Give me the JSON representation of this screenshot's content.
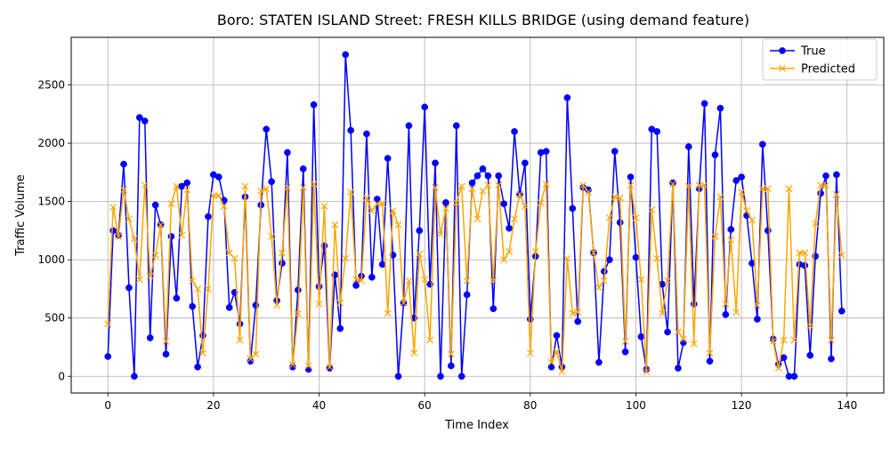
{
  "chart_data": {
    "type": "line",
    "title": "Boro: STATEN ISLAND Street: FRESH KILLS BRIDGE (using demand feature)",
    "xlabel": "Time Index",
    "ylabel": "Traffic Volume",
    "xlim": [
      -6.95,
      146.95
    ],
    "ylim": [
      -143,
      2908
    ],
    "xticks": [
      0,
      20,
      40,
      60,
      80,
      100,
      120,
      140
    ],
    "yticks": [
      0,
      500,
      1000,
      1500,
      2000,
      2500
    ],
    "grid": true,
    "legend": "top-right",
    "series": [
      {
        "name": "True",
        "color": "#0000ff",
        "marker": "circle",
        "values": [
          170,
          1250,
          1210,
          1820,
          760,
          0,
          2220,
          2190,
          330,
          1470,
          1300,
          190,
          1200,
          670,
          1630,
          1660,
          600,
          80,
          350,
          1370,
          1730,
          1710,
          1510,
          590,
          720,
          450,
          1540,
          130,
          610,
          1470,
          2120,
          1670,
          650,
          970,
          1920,
          80,
          740,
          1780,
          60,
          2330,
          770,
          1120,
          70,
          870,
          410,
          2760,
          2110,
          780,
          860,
          2080,
          850,
          1520,
          960,
          1870,
          1040,
          0,
          630,
          2150,
          500,
          1250,
          2310,
          790,
          1830,
          0,
          1490,
          90,
          2150,
          0,
          700,
          1660,
          1720,
          1780,
          1720,
          580,
          1720,
          1480,
          1270,
          2100,
          1560,
          1830,
          490,
          1030,
          1920,
          1930,
          80,
          350,
          80,
          2390,
          1440,
          470,
          1620,
          1600,
          1060,
          120,
          900,
          1000,
          1930,
          1320,
          210,
          1710,
          1020,
          340,
          60,
          2120,
          2100,
          790,
          380,
          1660,
          70,
          290,
          1970,
          620,
          1610,
          2340,
          130,
          1900,
          2300,
          530,
          1260,
          1680,
          1710,
          1380,
          970,
          490,
          1990,
          1250,
          320,
          100,
          160,
          0,
          0,
          960,
          950,
          180,
          1030,
          1570,
          1720,
          150,
          1730,
          560
        ]
      },
      {
        "name": "Predicted",
        "color": "#ffa500",
        "marker": "x",
        "values": [
          450,
          1450,
          1200,
          1600,
          1350,
          1180,
          830,
          1640,
          860,
          1040,
          1300,
          300,
          1480,
          1630,
          1210,
          1600,
          820,
          750,
          200,
          750,
          1550,
          1550,
          1460,
          1060,
          1010,
          310,
          1630,
          150,
          190,
          1590,
          1610,
          1200,
          610,
          1060,
          1620,
          100,
          540,
          1620,
          90,
          1650,
          620,
          1460,
          80,
          1300,
          630,
          1010,
          1580,
          830,
          820,
          1530,
          1420,
          1480,
          1480,
          540,
          1420,
          1300,
          630,
          820,
          200,
          1050,
          830,
          310,
          1620,
          1220,
          1440,
          190,
          1490,
          1630,
          820,
          1610,
          1350,
          1590,
          1640,
          820,
          1640,
          1000,
          1070,
          1350,
          1560,
          1460,
          200,
          1070,
          1490,
          1650,
          120,
          210,
          40,
          1010,
          540,
          550,
          1640,
          1580,
          1060,
          760,
          820,
          1360,
          1540,
          1530,
          300,
          1640,
          1360,
          830,
          40,
          1430,
          1010,
          540,
          820,
          1650,
          380,
          320,
          1630,
          280,
          1640,
          1640,
          200,
          1200,
          1540,
          620,
          1170,
          550,
          1580,
          1420,
          1340,
          610,
          1610,
          1610,
          300,
          70,
          310,
          1610,
          310,
          1060,
          1060,
          430,
          1310,
          1640,
          1640,
          310,
          1560,
          1040
        ]
      }
    ]
  }
}
